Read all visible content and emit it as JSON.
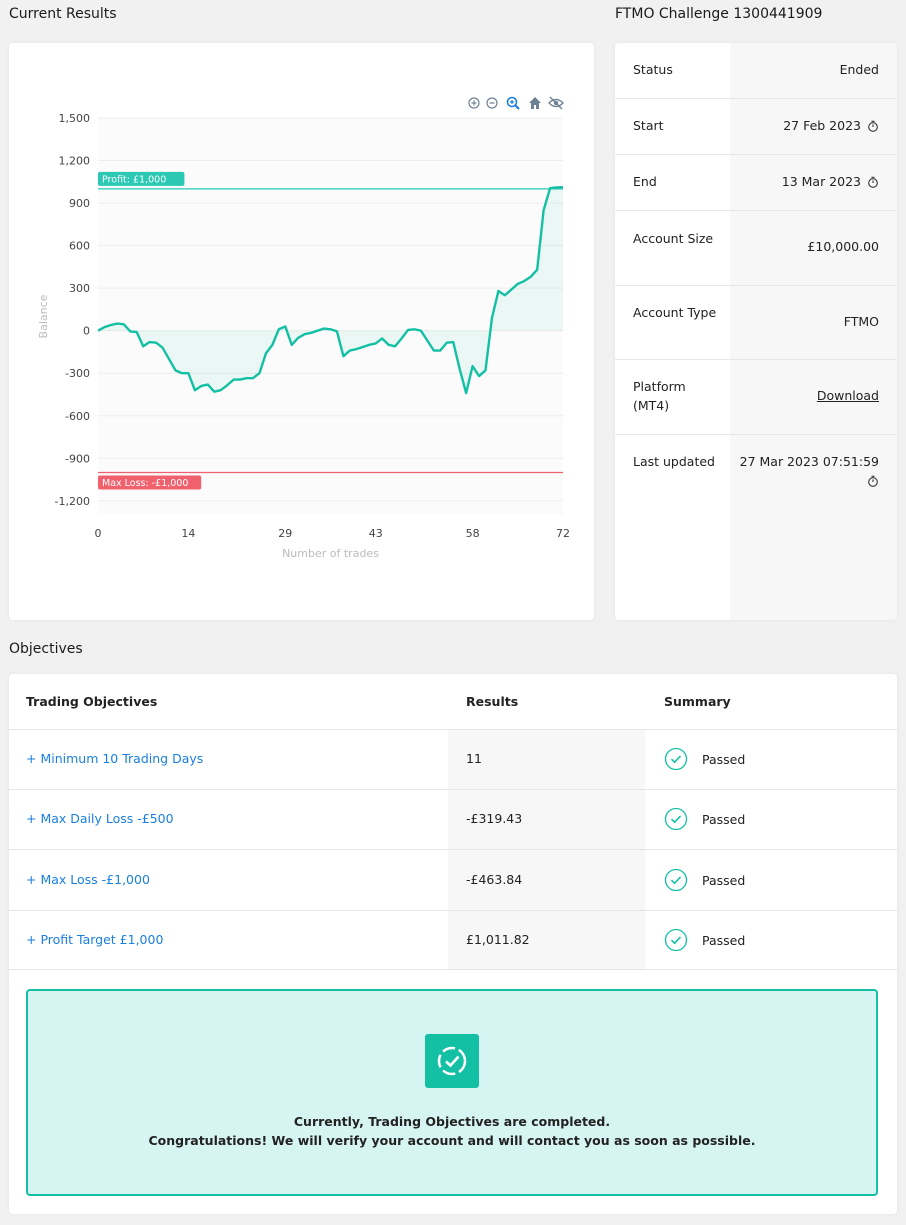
{
  "current_results": {
    "title": "Current Results"
  },
  "challenge": {
    "title": "FTMO Challenge 1300441909"
  },
  "chart_toolbar": {
    "zoom_in_icon": "zoom-in-icon",
    "zoom_out_icon": "zoom-out-icon",
    "zoom_select_icon": "magnifier-icon",
    "reset_icon": "home-icon",
    "hide_icon": "eye-slash-icon"
  },
  "chart_data": {
    "type": "line",
    "title": "",
    "xlabel": "Number of trades",
    "ylabel": "Balance",
    "xlim": [
      0,
      72
    ],
    "ylim": [
      -1300,
      1500
    ],
    "x_ticks": [
      "0",
      "14",
      "29",
      "43",
      "58",
      "72"
    ],
    "y_ticks": [
      "1,500",
      "1,200",
      "900",
      "600",
      "300",
      "0",
      "-300",
      "-600",
      "-900",
      "-1,200"
    ],
    "reference_lines": [
      {
        "label": "Profit: £1,000",
        "value": 1000,
        "color": "#2bc9b4"
      },
      {
        "label": "Max Loss: -£1,000",
        "value": -1000,
        "color": "#f0616d"
      }
    ],
    "series": [
      {
        "color": "#13c0a4",
        "x": [
          0,
          1,
          2,
          3,
          4,
          5,
          6,
          7,
          8,
          9,
          10,
          11,
          12,
          13,
          14,
          15,
          16,
          17,
          18,
          19,
          20,
          21,
          22,
          23,
          24,
          25,
          26,
          27,
          28,
          29,
          30,
          31,
          32,
          33,
          34,
          35,
          36,
          37,
          38,
          39,
          40,
          41,
          42,
          43,
          44,
          45,
          46,
          47,
          48,
          49,
          50,
          51,
          52,
          53,
          54,
          55,
          56,
          57,
          58,
          59,
          60,
          61,
          62,
          63,
          64,
          65,
          66,
          67,
          68,
          69,
          70,
          71,
          72
        ],
        "y": [
          0,
          25,
          40,
          50,
          45,
          -5,
          -10,
          -110,
          -80,
          -85,
          -120,
          -200,
          -280,
          -300,
          -300,
          -420,
          -390,
          -380,
          -430,
          -420,
          -385,
          -345,
          -345,
          -335,
          -335,
          -300,
          -160,
          -100,
          10,
          30,
          -100,
          -50,
          -25,
          -15,
          0,
          15,
          10,
          -5,
          -180,
          -140,
          -130,
          -115,
          -100,
          -90,
          -55,
          -100,
          -110,
          -55,
          5,
          10,
          0,
          -70,
          -140,
          -140,
          -85,
          -80,
          -270,
          -440,
          -250,
          -320,
          -280,
          90,
          280,
          250,
          290,
          330,
          350,
          380,
          430,
          850,
          1005,
          1010,
          1012
        ]
      }
    ]
  },
  "info": {
    "rows": [
      {
        "label": "Status",
        "value": "Ended"
      },
      {
        "label": "Start",
        "value": "27 Feb 2023"
      },
      {
        "label": "End",
        "value": "13 Mar 2023"
      },
      {
        "label": "Account Size",
        "value": "£10,000.00"
      },
      {
        "label": "Account Type",
        "value": "FTMO"
      },
      {
        "label": "Platform (MT4)",
        "value": "Download"
      },
      {
        "label": "Last updated",
        "value": "27 Mar 2023 07:51:59"
      }
    ]
  },
  "objectives": {
    "title": "Objectives",
    "headers": {
      "objective": "Trading Objectives",
      "results": "Results",
      "summary": "Summary"
    },
    "rows": [
      {
        "name": "+ Minimum 10 Trading Days",
        "result": "11",
        "summary": "Passed"
      },
      {
        "name": "+ Max Daily Loss -£500",
        "result": "-£319.43",
        "summary": "Passed"
      },
      {
        "name": "+ Max Loss -£1,000",
        "result": "-£463.84",
        "summary": "Passed"
      },
      {
        "name": "+ Profit Target £1,000",
        "result": "£1,011.82",
        "summary": "Passed"
      }
    ],
    "completed": {
      "line1": "Currently, Trading Objectives are completed.",
      "line2": "Congratulations! We will verify your account and will contact you as soon as possible."
    }
  },
  "colors": {
    "accent": "#13c0a4",
    "link": "#1a7fe0",
    "danger": "#f0616d"
  }
}
